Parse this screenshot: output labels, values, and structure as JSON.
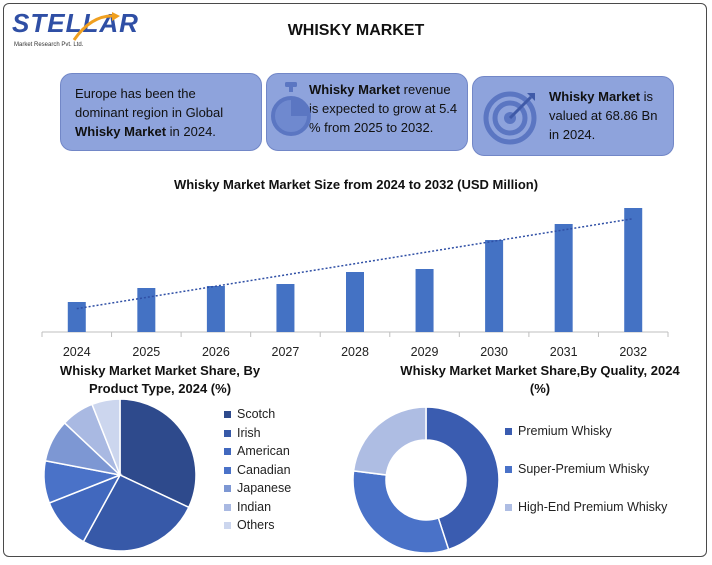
{
  "logo": {
    "word": "STELLAR",
    "subtitle": "Market Research Pvt. Ltd."
  },
  "page_title": "WHISKY MARKET",
  "cards": [
    {
      "pre": "Europe has been the dominant region in Global ",
      "bold": "Whisky Market",
      "post": " in 2024.",
      "icon": "none"
    },
    {
      "pre": "",
      "bold": "Whisky Market",
      "post": " revenue is expected to grow at 5.4 % from 2025 to 2032.",
      "icon": "stopwatch-icon"
    },
    {
      "pre": "",
      "bold": "Whisky Market",
      "post": " is valued at 68.86 Bn in 2024.",
      "icon": "target-icon"
    }
  ],
  "colors": {
    "card_bg": "#8ea3dc",
    "bar": "#4472c4",
    "trend": "#2f4fa5",
    "scotch": "#2e4a8c",
    "irish": "#3759a8",
    "american": "#4168be",
    "canadian": "#4a72c8",
    "japanese": "#7d97d3",
    "indian": "#a9b9e2",
    "others": "#ccd6ee",
    "premium": "#3a5cb0",
    "super_premium": "#4a72c8",
    "high_end": "#aebde3"
  },
  "chart_data": [
    {
      "type": "bar",
      "title": "Whisky Market Market Size from 2024 to 2032 (USD Million)",
      "categories": [
        "2024",
        "2025",
        "2026",
        "2027",
        "2028",
        "2029",
        "2030",
        "2031",
        "2032"
      ],
      "values": [
        30,
        44,
        46,
        48,
        60,
        63,
        92,
        108,
        124
      ],
      "ylim": [
        0,
        130
      ],
      "trendline": true,
      "grid": false,
      "xlabel": "",
      "ylabel": ""
    },
    {
      "type": "pie",
      "title": "Whisky Market Market Share, By Product Type, 2024 (%)",
      "labels": [
        "Scotch",
        "Irish",
        "American",
        "Canadian",
        "Japanese",
        "Indian",
        "Others"
      ],
      "values": [
        32,
        26,
        11,
        9,
        9,
        7,
        6
      ],
      "legend": "right"
    },
    {
      "type": "pie",
      "donut": true,
      "title": "Whisky Market Market Share,By Quality, 2024 (%)",
      "labels": [
        "Premium Whisky",
        "Super-Premium Whisky",
        "High-End Premium Whisky"
      ],
      "values": [
        45,
        32,
        23
      ],
      "legend": "right"
    }
  ]
}
